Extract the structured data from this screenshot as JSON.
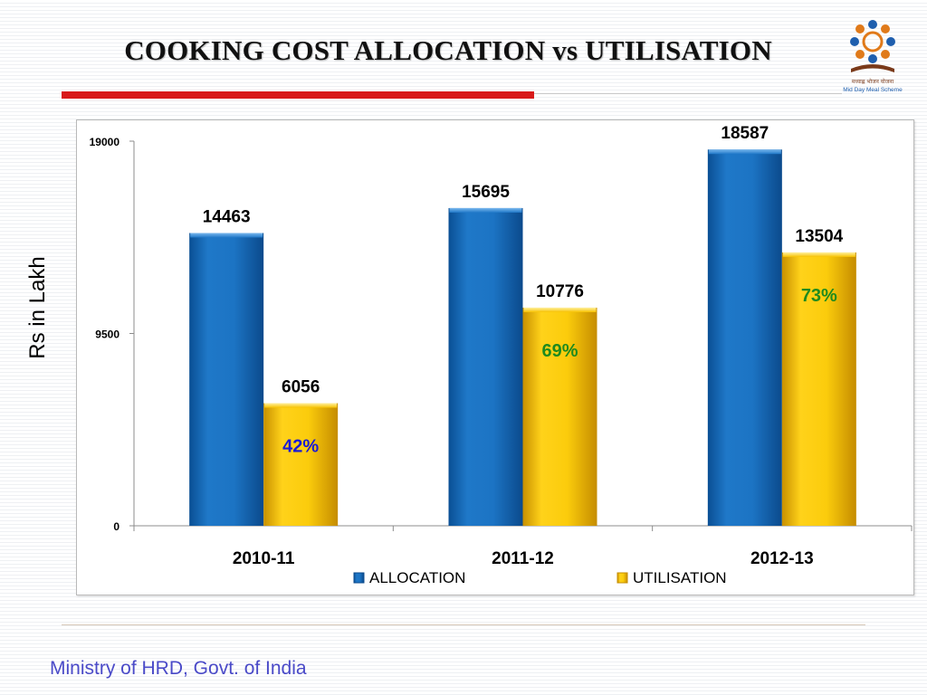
{
  "slide": {
    "title": "COOKING COST ALLOCATION vs UTILISATION",
    "footer": "Ministry of HRD, Govt. of India",
    "logo_caption": "मध्याह्न भोजन योजना",
    "logo_subcaption": "Mid Day Meal Scheme"
  },
  "chart_data": {
    "type": "bar",
    "title": "",
    "xlabel": "",
    "ylabel": "Rs in Lakh",
    "categories": [
      "2010-11",
      "2011-12",
      "2012-13"
    ],
    "series": [
      {
        "name": "ALLOCATION",
        "values": [
          14463,
          15695,
          18587
        ],
        "labels": [
          "14463",
          "15695",
          "18587"
        ],
        "color": "#1f78c8"
      },
      {
        "name": "UTILISATION",
        "values": [
          6056,
          10776,
          13504
        ],
        "labels": [
          "6056",
          "10776",
          "13504"
        ],
        "color": "#f7c200"
      }
    ],
    "utilisation_percent": [
      {
        "label": "42%",
        "value": 42,
        "color": "#1a1ad6"
      },
      {
        "label": "69%",
        "value": 69,
        "color": "#1e8a1e"
      },
      {
        "label": "73%",
        "value": 73,
        "color": "#1e8a1e"
      }
    ],
    "yticks": [
      "0",
      "9500",
      "19000"
    ],
    "ylim": [
      0,
      19000
    ],
    "grid": false,
    "legend_position": "bottom"
  }
}
